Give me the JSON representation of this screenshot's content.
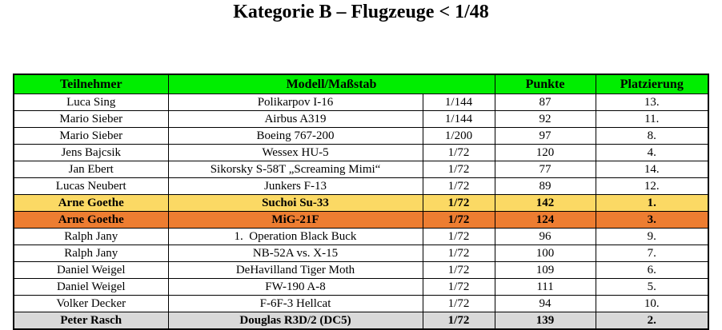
{
  "title": "Kategorie B – Flugzeuge < 1/48",
  "colors": {
    "header_bg": "#00EE00",
    "gold_row_bg": "#FBD964",
    "orange_row_bg": "#ED7D31",
    "gray_row_bg": "#D9D9D9",
    "border": "#000000",
    "text": "#000000"
  },
  "table": {
    "headers": {
      "teilnehmer": "Teilnehmer",
      "modell": "Modell/Maßstab",
      "punkte": "Punkte",
      "platzierung": "Platzierung"
    },
    "rows": [
      {
        "teilnehmer": "Luca Sing",
        "modell": "Polikarpov I-16",
        "massstab": "1/144",
        "punkte": "87",
        "platzierung": "13.",
        "highlight": "none"
      },
      {
        "teilnehmer": "Mario Sieber",
        "modell": "Airbus A319",
        "massstab": "1/144",
        "punkte": "92",
        "platzierung": "11.",
        "highlight": "none"
      },
      {
        "teilnehmer": "Mario Sieber",
        "modell": "Boeing 767-200",
        "massstab": "1/200",
        "punkte": "97",
        "platzierung": "8.",
        "highlight": "none"
      },
      {
        "teilnehmer": "Jens Bajcsik",
        "modell": "Wessex HU-5",
        "massstab": "1/72",
        "punkte": "120",
        "platzierung": "4.",
        "highlight": "none"
      },
      {
        "teilnehmer": "Jan Ebert",
        "modell": "Sikorsky S-58T „Screaming Mimi“",
        "massstab": "1/72",
        "punkte": "77",
        "platzierung": "14.",
        "highlight": "none"
      },
      {
        "teilnehmer": "Lucas Neubert",
        "modell": "Junkers F-13",
        "massstab": "1/72",
        "punkte": "89",
        "platzierung": "12.",
        "highlight": "none"
      },
      {
        "teilnehmer": "Arne Goethe",
        "modell": "Suchoi Su-33",
        "massstab": "1/72",
        "punkte": "142",
        "platzierung": "1.",
        "highlight": "gold"
      },
      {
        "teilnehmer": "Arne Goethe",
        "modell": "MiG-21F",
        "massstab": "1/72",
        "punkte": "124",
        "platzierung": "3.",
        "highlight": "orange"
      },
      {
        "teilnehmer": "Ralph Jany",
        "modell": "1.  Operation Black Buck",
        "massstab": "1/72",
        "punkte": "96",
        "platzierung": "9.",
        "highlight": "none"
      },
      {
        "teilnehmer": "Ralph Jany",
        "modell": "NB-52A vs. X-15",
        "massstab": "1/72",
        "punkte": "100",
        "platzierung": "7.",
        "highlight": "none"
      },
      {
        "teilnehmer": "Daniel Weigel",
        "modell": "DeHavilland Tiger Moth",
        "massstab": "1/72",
        "punkte": "109",
        "platzierung": "6.",
        "highlight": "none"
      },
      {
        "teilnehmer": "Daniel Weigel",
        "modell": "FW-190 A-8",
        "massstab": "1/72",
        "punkte": "111",
        "platzierung": "5.",
        "highlight": "none"
      },
      {
        "teilnehmer": "Volker Decker",
        "modell": "F-6F-3 Hellcat",
        "massstab": "1/72",
        "punkte": "94",
        "platzierung": "10.",
        "highlight": "none"
      },
      {
        "teilnehmer": "Peter Rasch",
        "modell": "Douglas R3D/2 (DC5)",
        "massstab": "1/72",
        "punkte": "139",
        "platzierung": "2.",
        "highlight": "gray"
      }
    ]
  }
}
